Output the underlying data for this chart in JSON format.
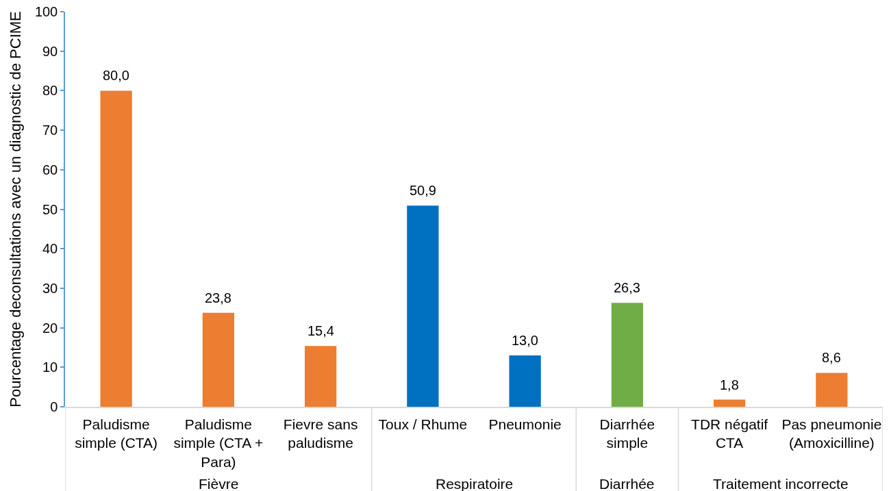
{
  "chart_data": {
    "type": "bar",
    "ylabel": "Pourcentage deconsultations avec un diagnostic de PCIME",
    "categories": [
      "Paludisme\nsimple (CTA)",
      "Paludisme\nsimple (CTA +\nPara)",
      "Fievre sans\npaludisme",
      "Toux / Rhume",
      "Pneumonie",
      "Diarrhée\nsimple",
      "TDR négatif\nCTA",
      "Pas pneumonie\n(Amoxicilline)"
    ],
    "series": [
      {
        "color": "#ed7d31",
        "values": [
          80.0,
          23.8,
          15.4,
          null,
          null,
          null,
          null,
          null
        ],
        "value_labels": [
          "80,0",
          "23,8",
          "15,4",
          null,
          null,
          null,
          null,
          null
        ]
      },
      {
        "color": "#0070c0",
        "values": [
          null,
          null,
          null,
          50.9,
          13.0,
          null,
          null,
          null
        ],
        "value_labels": [
          null,
          null,
          null,
          "50,9",
          "13,0",
          null,
          null,
          null
        ]
      },
      {
        "color": "#70ad47",
        "values": [
          null,
          null,
          null,
          null,
          null,
          26.3,
          null,
          null
        ],
        "value_labels": [
          null,
          null,
          null,
          null,
          null,
          "26,3",
          null,
          null
        ]
      },
      {
        "color": "#ed7d31",
        "values": [
          null,
          null,
          null,
          null,
          null,
          null,
          1.8,
          8.6
        ],
        "value_labels": [
          null,
          null,
          null,
          null,
          null,
          null,
          "1,8",
          "8,6"
        ]
      }
    ],
    "annotations": [
      "Fièvre",
      "Respiratoire",
      "Diarrhée",
      "Traitement incorrecte"
    ],
    "ylim": [
      0,
      100
    ],
    "yticks": [
      0,
      10,
      20,
      30,
      40,
      50,
      60,
      70,
      80,
      90,
      100
    ]
  }
}
